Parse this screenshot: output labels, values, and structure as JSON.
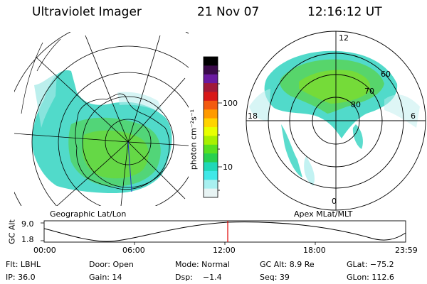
{
  "header": {
    "instrument": "Ultraviolet Imager",
    "date": "21 Nov 07",
    "time": "12:16:12 UT"
  },
  "left_panel": {
    "label": "Geographic Lat/Lon"
  },
  "right_panel": {
    "label": "Apex MLat/MLT",
    "lat_labels": [
      "60",
      "70",
      "80"
    ],
    "mlt_labels": {
      "top": "12",
      "left": "18",
      "right": "6",
      "bottom": "0"
    }
  },
  "colorbar": {
    "unit_label": "photon cm⁻²s⁻¹",
    "ticks": [
      "100",
      "10"
    ],
    "colors": [
      "#000000",
      "#3a0a4a",
      "#6a1aa0",
      "#a01a3a",
      "#d81818",
      "#f25a10",
      "#ff9a00",
      "#ffd400",
      "#e8ff00",
      "#a8f000",
      "#58e020",
      "#28d050",
      "#20d8b8",
      "#40e8e8",
      "#a8f0f0",
      "#e8f4f4"
    ]
  },
  "altitude_plot": {
    "ylabel": "GC Alt",
    "yticks": [
      "9.0",
      "1.8"
    ],
    "xticks": [
      "00:00",
      "06:00",
      "12:00",
      "18:00",
      "23:59"
    ],
    "marker_color": "#e00000"
  },
  "status": {
    "flt": "Flt: LBHL",
    "door": "Door: Open",
    "mode": "Mode: Normal",
    "gc_alt": "GC Alt: 8.9 Re",
    "glat": "GLat: −75.2",
    "ip": "IP: 36.0",
    "gain": "Gain: 14",
    "dsp": "Dsp:    −1.4",
    "seq": "Seq: 39",
    "glon": "GLon: 112.6"
  }
}
